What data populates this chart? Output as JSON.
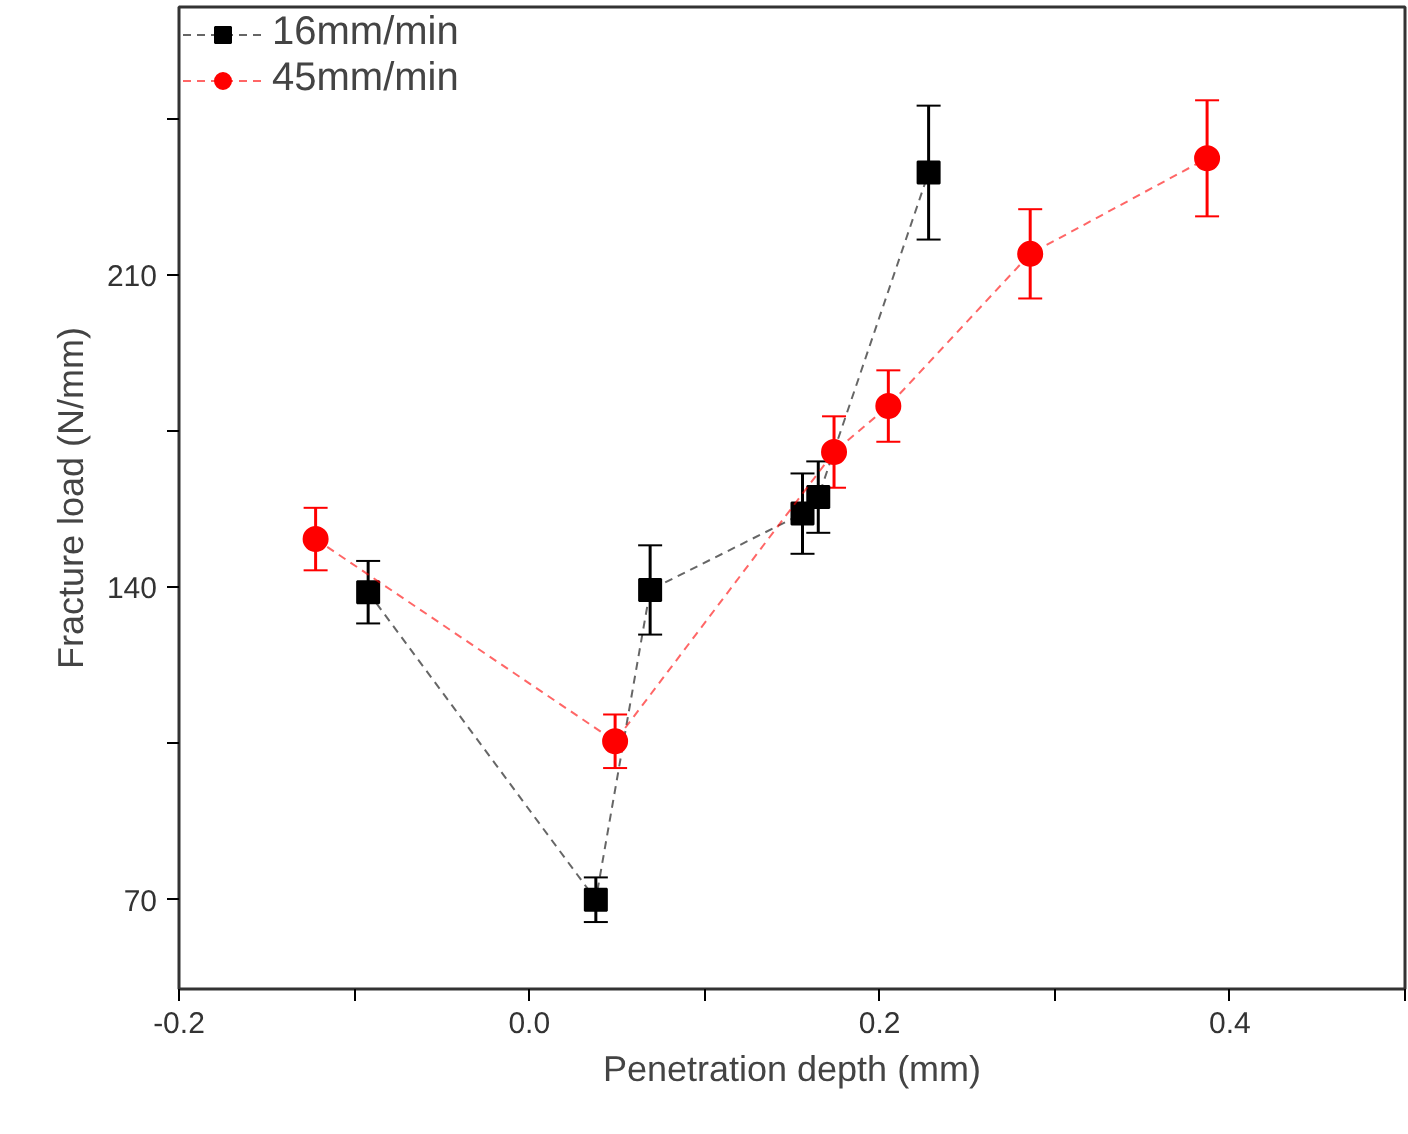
{
  "chart_data": {
    "type": "line",
    "xlabel": "Penetration depth (mm)",
    "ylabel": "Fracture load (N/mm)",
    "xlim": [
      -0.2,
      0.5
    ],
    "ylim": [
      50,
      270
    ],
    "xticks": [
      -0.2,
      {
        "value": -0.1,
        "label": null
      },
      {
        "value": 0,
        "label": "0.0"
      },
      {
        "value": 0.1,
        "label": null
      },
      0.2,
      {
        "value": 0.3,
        "label": null
      },
      0.4,
      {
        "value": 0.5,
        "label": null
      }
    ],
    "yticks": [
      70,
      {
        "value": 105,
        "label": null
      },
      140,
      {
        "value": 175,
        "label": null
      },
      210,
      {
        "value": 245,
        "label": null
      }
    ],
    "grid": false,
    "legend": "top left",
    "line_style": "dashed",
    "series": [
      {
        "name": "16mm/min",
        "color": "#000000",
        "marker": "square",
        "x": [
          -0.092,
          0.038,
          0.069,
          0.156,
          0.165,
          0.228
        ],
        "values": [
          138.9,
          70,
          139.4,
          156.5,
          160.2,
          232.9
        ],
        "errors": [
          7,
          5,
          10,
          9,
          8,
          15
        ]
      },
      {
        "name": "45mm/min",
        "color": "#ff0000",
        "marker": "circle",
        "x": [
          -0.122,
          0.049,
          0.174,
          0.205,
          0.286,
          0.387
        ],
        "values": [
          150.8,
          105.5,
          170.3,
          180.6,
          214.7,
          236.1
        ],
        "errors": [
          7,
          6,
          8,
          8,
          10,
          13
        ]
      }
    ]
  }
}
